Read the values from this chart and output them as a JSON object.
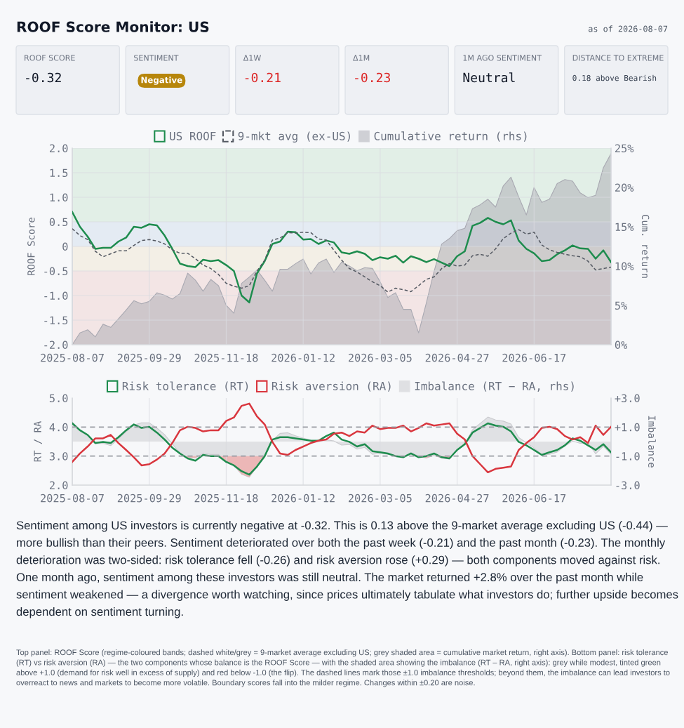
{
  "chart_data": [
    {
      "type": "other",
      "title": "ROOF Score Monitor: US",
      "subtitle": "as of 2026-08-07",
      "annotations": [
        "ROOF SCORE",
        "-0.32",
        "SENTIMENT",
        "Negative",
        "Δ1W",
        "-0.21",
        "Δ1M",
        "-0.23",
        "1M AGO SENTIMENT",
        "Neutral",
        "DISTANCE TO EXTREME",
        "0.18 above Bearish"
      ],
      "colors": [
        "#111827",
        "#b7860b",
        "#dc2626",
        "#dc2626",
        "#111827",
        "#374151"
      ]
    },
    {
      "type": "line",
      "ylabel": "ROOF Score",
      "y2label": "Cum. return",
      "categories": [
        "2025-08-07",
        null,
        null,
        null,
        null,
        null,
        null,
        null,
        null,
        null,
        "2025-09-29",
        null,
        null,
        null,
        null,
        null,
        null,
        null,
        null,
        null,
        "2025-11-18",
        null,
        null,
        null,
        null,
        null,
        null,
        null,
        null,
        null,
        "2026-01-12",
        null,
        null,
        null,
        null,
        null,
        null,
        null,
        null,
        null,
        "2026-03-05",
        null,
        null,
        null,
        null,
        null,
        null,
        null,
        null,
        null,
        "2026-04-27",
        null,
        null,
        null,
        null,
        null,
        null,
        null,
        null,
        null,
        "2026-06-17",
        null,
        null,
        null,
        null,
        null,
        null,
        null,
        null,
        null,
        null
      ],
      "series": [
        {
          "name": "US ROOF",
          "type": "line",
          "color": "#1e8c4e",
          "values": [
            0.7,
            0.4,
            0.2,
            -0.05,
            -0.03,
            -0.03,
            0.1,
            0.18,
            0.4,
            0.38,
            0.45,
            0.43,
            0.22,
            -0.05,
            -0.35,
            -0.4,
            -0.42,
            -0.27,
            -0.3,
            -0.28,
            -0.38,
            -0.5,
            -1.0,
            -1.14,
            -0.55,
            -0.3,
            0.05,
            0.1,
            0.3,
            0.29,
            0.14,
            0.15,
            0.05,
            0.12,
            0.08,
            -0.12,
            -0.15,
            -0.1,
            -0.15,
            -0.28,
            -0.22,
            -0.25,
            -0.19,
            -0.33,
            -0.2,
            -0.25,
            -0.32,
            -0.26,
            -0.33,
            -0.4,
            -0.2,
            -0.1,
            0.42,
            0.48,
            0.58,
            0.5,
            0.45,
            0.53,
            0.12,
            -0.05,
            -0.14,
            -0.3,
            -0.28,
            -0.16,
            -0.08,
            0.02,
            -0.04,
            -0.05,
            -0.25,
            -0.08,
            -0.32
          ]
        },
        {
          "name": "9-mkt avg (ex-US)",
          "type": "line",
          "line_style": "dashed",
          "color": "#555a63",
          "values": [
            0.36,
            0.22,
            0.14,
            -0.1,
            -0.21,
            -0.15,
            -0.09,
            -0.09,
            0.02,
            0.12,
            0.14,
            0.11,
            0.05,
            -0.07,
            -0.14,
            -0.14,
            -0.25,
            -0.38,
            -0.45,
            -0.57,
            -0.75,
            -0.81,
            -0.85,
            -0.8,
            -0.5,
            -0.28,
            0.13,
            0.17,
            0.28,
            0.27,
            0.29,
            0.28,
            0.15,
            0.13,
            -0.08,
            -0.28,
            -0.45,
            -0.52,
            -0.62,
            -0.72,
            -0.8,
            -0.93,
            -0.85,
            -0.88,
            -0.92,
            -0.8,
            -0.67,
            -0.62,
            -0.45,
            -0.35,
            -0.4,
            -0.38,
            -0.19,
            -0.16,
            -0.2,
            -0.05,
            0.16,
            0.27,
            0.34,
            0.25,
            0.29,
            0.03,
            -0.07,
            -0.12,
            -0.16,
            -0.19,
            -0.21,
            -0.3,
            -0.48,
            -0.45,
            -0.42
          ]
        },
        {
          "name": "Cumulative return (rhs)",
          "type": "area",
          "axis": "y2",
          "color": "#a9a9b2",
          "values": [
            0.0,
            1.5,
            1.9,
            1.0,
            2.6,
            2.2,
            3.3,
            4.4,
            5.6,
            5.2,
            5.5,
            6.6,
            6.3,
            5.8,
            6.5,
            9.1,
            8.2,
            6.8,
            8.3,
            7.5,
            5.0,
            4.0,
            7.8,
            8.6,
            9.5,
            8.2,
            6.8,
            9.6,
            9.6,
            10.3,
            10.9,
            9.0,
            10.4,
            10.9,
            9.2,
            10.5,
            10.0,
            9.4,
            9.8,
            9.7,
            8.0,
            6.0,
            6.6,
            4.5,
            4.5,
            1.5,
            5.3,
            9.3,
            12.8,
            13.5,
            14.5,
            14.8,
            17.3,
            17.8,
            18.5,
            17.5,
            20.2,
            21.3,
            18.8,
            16.5,
            20.0,
            18.1,
            18.5,
            20.5,
            21.0,
            20.8,
            19.3,
            18.7,
            19.0,
            22.5,
            24.3
          ]
        }
      ],
      "bands": [
        {
          "axis": "y",
          "from": 0.5,
          "to": 2.0,
          "color": "#e2efe7"
        },
        {
          "axis": "y",
          "from": 0.0,
          "to": 0.5,
          "color": "#e4ebf3"
        },
        {
          "axis": "y",
          "from": -0.5,
          "to": 0.0,
          "color": "#f3efe6"
        },
        {
          "axis": "y",
          "from": -2.0,
          "to": -0.5,
          "color": "#f3e5e5"
        }
      ],
      "ylim": [
        -2.0,
        2.0
      ],
      "yticks": [
        {
          "value": -2.0,
          "label": "-2.0"
        },
        {
          "value": -1.5,
          "label": "-1.5"
        },
        {
          "value": -1.0,
          "label": "-1.0"
        },
        {
          "value": -0.5,
          "label": "-0.5"
        },
        0,
        {
          "value": 0.5,
          "label": "0.5"
        },
        {
          "value": 1.0,
          "label": "1.0"
        },
        {
          "value": 1.5,
          "label": "1.5"
        },
        {
          "value": 2.0,
          "label": "2.0"
        }
      ],
      "y2lim": [
        0,
        25
      ],
      "y2ticks": [
        {
          "value": 0,
          "label": "0%"
        },
        {
          "value": 5,
          "label": "5%"
        },
        {
          "value": 10,
          "label": "10%"
        },
        {
          "value": 15,
          "label": "15%"
        },
        {
          "value": 20,
          "label": "20%"
        },
        {
          "value": 25,
          "label": "25%"
        }
      ],
      "grid": true,
      "legend": "top"
    },
    {
      "type": "line",
      "ylabel": "RT / RA",
      "y2label": "Imbalance",
      "categories": [
        "2025-08-07",
        null,
        null,
        null,
        null,
        null,
        null,
        null,
        null,
        null,
        "2025-09-29",
        null,
        null,
        null,
        null,
        null,
        null,
        null,
        null,
        null,
        "2025-11-18",
        null,
        null,
        null,
        null,
        null,
        null,
        null,
        null,
        null,
        "2026-01-12",
        null,
        null,
        null,
        null,
        null,
        null,
        null,
        null,
        null,
        "2026-03-05",
        null,
        null,
        null,
        null,
        null,
        null,
        null,
        null,
        null,
        "2026-04-27",
        null,
        null,
        null,
        null,
        null,
        null,
        null,
        null,
        null,
        "2026-06-17",
        null,
        null,
        null,
        null,
        null,
        null,
        null,
        null,
        null,
        null
      ],
      "series": [
        {
          "name": "Risk tolerance (RT)",
          "type": "line",
          "color": "#1e8c4e",
          "values": [
            4.13,
            3.89,
            3.73,
            3.45,
            3.49,
            3.45,
            3.65,
            3.89,
            4.09,
            3.97,
            4.01,
            3.81,
            3.57,
            3.29,
            3.09,
            2.92,
            2.84,
            3.04,
            3.0,
            3.0,
            2.8,
            2.68,
            2.48,
            2.36,
            2.64,
            3.0,
            3.57,
            3.65,
            3.65,
            3.61,
            3.57,
            3.53,
            3.53,
            3.69,
            3.81,
            3.57,
            3.49,
            3.33,
            3.41,
            3.17,
            3.13,
            3.09,
            3.0,
            2.96,
            3.09,
            2.96,
            3.0,
            3.09,
            2.96,
            2.92,
            3.21,
            3.41,
            3.81,
            3.97,
            4.13,
            4.05,
            4.01,
            3.85,
            3.49,
            3.37,
            3.21,
            3.04,
            3.13,
            3.21,
            3.37,
            3.61,
            3.53,
            3.37,
            3.21,
            3.41,
            3.13
          ]
        },
        {
          "name": "Risk aversion (RA)",
          "type": "line",
          "color": "#d9363e",
          "values": [
            2.8,
            3.09,
            3.33,
            3.61,
            3.61,
            3.73,
            3.45,
            3.21,
            2.96,
            2.68,
            2.72,
            2.88,
            3.09,
            3.45,
            3.89,
            4.01,
            3.97,
            3.85,
            3.89,
            3.89,
            4.21,
            4.33,
            4.73,
            4.81,
            4.37,
            4.09,
            3.49,
            3.09,
            3.04,
            3.21,
            3.33,
            3.45,
            3.53,
            3.57,
            3.77,
            3.81,
            3.69,
            3.85,
            3.81,
            4.05,
            3.93,
            3.97,
            3.97,
            4.05,
            3.85,
            3.97,
            4.13,
            4.05,
            4.09,
            4.13,
            3.77,
            3.57,
            3.0,
            2.72,
            2.44,
            2.56,
            2.6,
            2.64,
            3.21,
            3.45,
            3.65,
            3.97,
            4.01,
            3.93,
            3.69,
            3.57,
            3.65,
            3.45,
            4.05,
            3.73,
            4.01
          ]
        },
        {
          "name": "Imbalance (RT − RA, rhs)",
          "type": "area",
          "axis": "y2",
          "color": "#c9cace",
          "values": [
            1.33,
            0.8,
            0.4,
            -0.16,
            -0.12,
            -0.28,
            0.2,
            0.68,
            1.13,
            1.29,
            1.29,
            0.93,
            0.48,
            -0.16,
            -0.8,
            -1.09,
            -1.13,
            -0.81,
            -0.89,
            -0.89,
            -1.41,
            -1.65,
            -2.25,
            -2.45,
            -1.73,
            -1.09,
            0.08,
            0.56,
            0.61,
            0.4,
            0.24,
            0.08,
            0.0,
            0.12,
            0.04,
            -0.24,
            -0.2,
            -0.52,
            -0.4,
            -0.88,
            -0.8,
            -0.88,
            -0.97,
            -1.09,
            -0.76,
            -1.01,
            -1.13,
            -0.96,
            -1.13,
            -1.21,
            -0.56,
            -0.16,
            0.81,
            1.25,
            1.69,
            1.49,
            1.41,
            1.21,
            0.28,
            -0.08,
            -0.44,
            -0.93,
            -0.88,
            -0.72,
            -0.32,
            0.04,
            -0.12,
            -0.08,
            -0.84,
            -0.32,
            -0.88
          ]
        }
      ],
      "ref_lines": [
        {
          "axis": "y2",
          "value": 1.0,
          "color": "#9a9ca3",
          "line_style": "dashed"
        },
        {
          "axis": "y2",
          "value": -1.0,
          "color": "#9a9ca3",
          "line_style": "dashed"
        }
      ],
      "ylim": [
        2.0,
        5.0
      ],
      "yticks": [
        {
          "value": 2.0,
          "label": "2.0"
        },
        {
          "value": 3.0,
          "label": "3.0"
        },
        {
          "value": 4.0,
          "label": "4.0"
        },
        {
          "value": 5.0,
          "label": "5.0"
        }
      ],
      "y2lim": [
        -3.0,
        3.0
      ],
      "y2ticks": [
        {
          "value": -3.0,
          "label": "-3.0"
        },
        {
          "value": -1.0,
          "label": "-1.0"
        },
        {
          "value": 1.0,
          "label": "+1.0"
        },
        {
          "value": 3.0,
          "label": "+3.0"
        }
      ],
      "grid": "x",
      "legend": "top"
    },
    {
      "type": "other",
      "annotations": [
        "Sentiment among US investors is currently negative at -0.32. This is 0.13 above the 9-market average excluding US (-0.44) — more bullish than their peers. Sentiment deteriorated over both the past week (-0.21) and the past month (-0.23). The monthly deterioration was two-sided: risk tolerance fell (-0.26) and risk aversion rose (+0.29) — both components moved against risk. One month ago, sentiment among these investors was still neutral. The market returned +2.8% over the past month while sentiment weakened — a divergence worth watching, since prices ultimately tabulate what investors do; further upside becomes dependent on sentiment turning.",
        "Top panel: ROOF Score (regime-coloured bands; dashed white/grey = 9-market average excluding US; grey shaded area = cumulative market return, right axis). Bottom panel: risk tolerance (RT) vs risk aversion (RA) — the two components whose balance is the ROOF Score — with the shaded area showing the imbalance (RT – RA, right axis): grey while modest, tinted green above +1.0 (demand for risk well in excess of supply) and red below -1.0 (the flip). The dashed lines mark those ±1.0 imbalance thresholds; beyond them, the imbalance can lead investors to overreact to news and markets to become more volatile. Boundary scores fall into the milder regime. Changes within ±0.20 are noise."
      ]
    }
  ]
}
